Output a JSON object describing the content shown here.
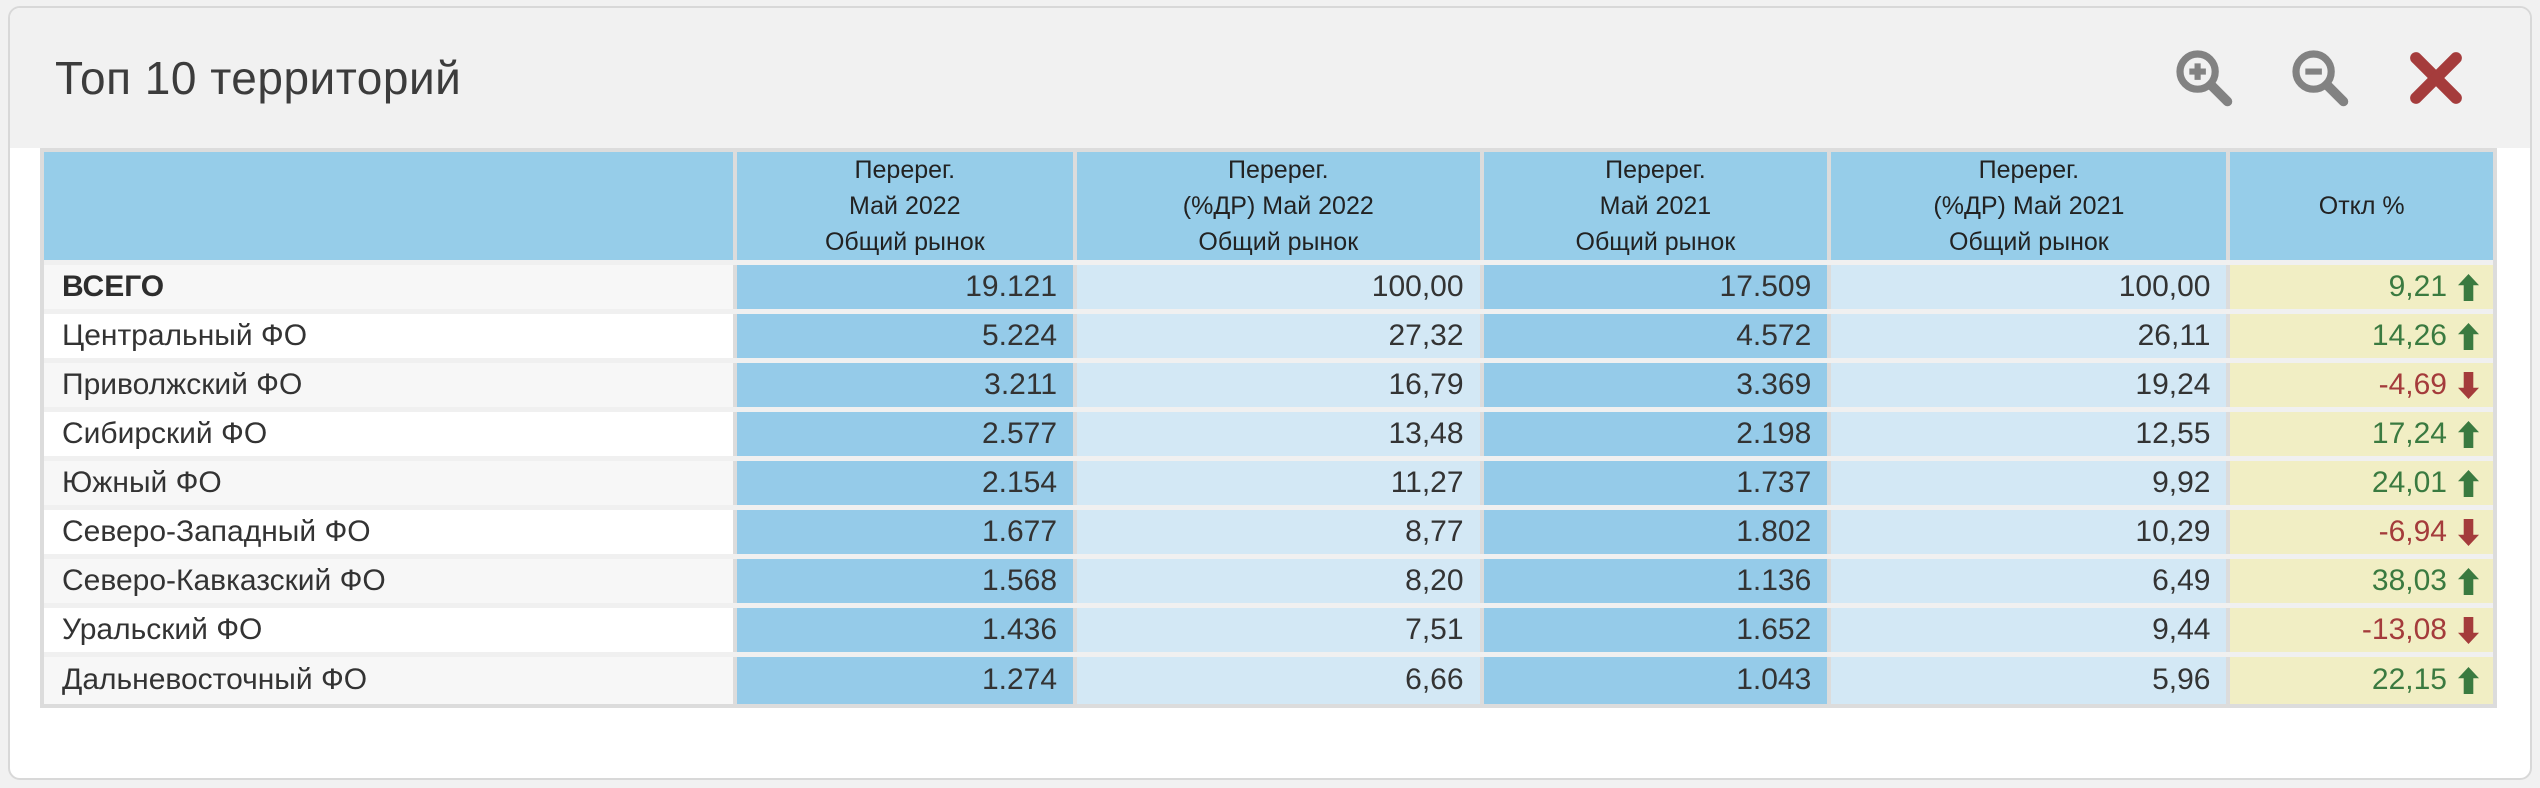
{
  "window": {
    "title": "Топ 10 территорий",
    "toolbar": {
      "zoom_in_tooltip": "Увеличить",
      "zoom_out_tooltip": "Уменьшить",
      "close_tooltip": "Закрыть"
    }
  },
  "colors": {
    "page-bg": "#f1f1f1",
    "panel-border": "#d8d8d8",
    "titlebar-bg": "#f1f1f1",
    "title-color": "#3c3c3c",
    "grid-line": "#dcdcdc",
    "row-gap": "#f0f0f0",
    "header-blue": "#96cde9",
    "count-blue": "#95cbe9",
    "pct-blue": "#d3e8f5",
    "total-blue": "#dbe8f6",
    "zebra-gray": "#f7f7f7",
    "dev-yellow": "#f1eec4",
    "up-green": "#3a7a40",
    "down-red": "#a43b3b",
    "icon-gray": "#828282",
    "icon-red": "#a53c3c"
  },
  "table": {
    "columns": [
      {
        "key": "name",
        "header_lines": []
      },
      {
        "key": "may2022",
        "header_lines": [
          "Перерег.",
          "Май 2022",
          "Общий рынок"
        ]
      },
      {
        "key": "pct2022",
        "header_lines": [
          "Перерег.",
          "(%ДР) Май 2022",
          "Общий рынок"
        ]
      },
      {
        "key": "may2021",
        "header_lines": [
          "Перерег.",
          "Май 2021",
          "Общий рынок"
        ]
      },
      {
        "key": "pct2021",
        "header_lines": [
          "Перерег.",
          "(%ДР) Май 2021",
          "Общий рынок"
        ]
      },
      {
        "key": "dev",
        "header_lines": [
          "Откл %"
        ]
      }
    ],
    "rows": [
      {
        "name": "ВСЕГО",
        "total": true,
        "may2022": "19.121",
        "pct2022": "100,00",
        "may2021": "17.509",
        "pct2021": "100,00",
        "dev": "9,21",
        "trend": "up"
      },
      {
        "name": "Центральный ФО",
        "may2022": "5.224",
        "pct2022": "27,32",
        "may2021": "4.572",
        "pct2021": "26,11",
        "dev": "14,26",
        "trend": "up"
      },
      {
        "name": "Приволжский ФО",
        "may2022": "3.211",
        "pct2022": "16,79",
        "may2021": "3.369",
        "pct2021": "19,24",
        "dev": "-4,69",
        "trend": "down"
      },
      {
        "name": "Сибирский ФО",
        "may2022": "2.577",
        "pct2022": "13,48",
        "may2021": "2.198",
        "pct2021": "12,55",
        "dev": "17,24",
        "trend": "up"
      },
      {
        "name": "Южный ФО",
        "may2022": "2.154",
        "pct2022": "11,27",
        "may2021": "1.737",
        "pct2021": "9,92",
        "dev": "24,01",
        "trend": "up"
      },
      {
        "name": "Северо-Западный ФО",
        "may2022": "1.677",
        "pct2022": "8,77",
        "may2021": "1.802",
        "pct2021": "10,29",
        "dev": "-6,94",
        "trend": "down"
      },
      {
        "name": "Северо-Кавказский ФО",
        "may2022": "1.568",
        "pct2022": "8,20",
        "may2021": "1.136",
        "pct2021": "6,49",
        "dev": "38,03",
        "trend": "up"
      },
      {
        "name": "Уральский ФО",
        "may2022": "1.436",
        "pct2022": "7,51",
        "may2021": "1.652",
        "pct2021": "9,44",
        "dev": "-13,08",
        "trend": "down"
      },
      {
        "name": "Дальневосточный ФО",
        "may2022": "1.274",
        "pct2022": "6,66",
        "may2021": "1.043",
        "pct2021": "5,96",
        "dev": "22,15",
        "trend": "up"
      }
    ]
  }
}
